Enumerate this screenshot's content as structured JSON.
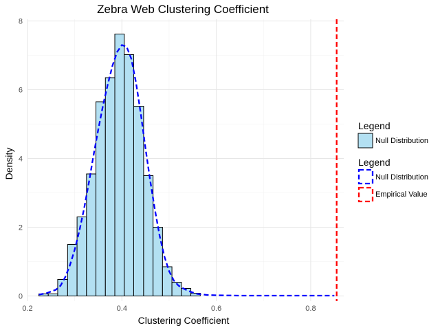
{
  "chart_data": {
    "type": "bar",
    "title": "Zebra Web Clustering Coefficient",
    "xlabel": "Clustering Coefficient",
    "ylabel": "Density",
    "xlim": [
      0.2,
      0.87
    ],
    "ylim": [
      -0.15,
      8.05
    ],
    "x_ticks": [
      0.2,
      0.4,
      0.6,
      0.8
    ],
    "y_ticks": [
      0,
      2,
      4,
      6,
      8
    ],
    "x_tick_labels": [
      "0.2",
      "0.4",
      "0.6",
      "0.8"
    ],
    "y_tick_labels": [
      "0",
      "2",
      "4",
      "6",
      "8"
    ],
    "grid": true,
    "legend_position": "right",
    "histogram": {
      "name": "Null Distribution",
      "fill": "#b3e0f2",
      "stroke": "#000000",
      "bins": [
        {
          "x0": 0.224,
          "x1": 0.244,
          "density": 0.06
        },
        {
          "x0": 0.244,
          "x1": 0.264,
          "density": 0.06
        },
        {
          "x0": 0.264,
          "x1": 0.285,
          "density": 0.48
        },
        {
          "x0": 0.285,
          "x1": 0.305,
          "density": 1.5
        },
        {
          "x0": 0.305,
          "x1": 0.325,
          "density": 2.3
        },
        {
          "x0": 0.325,
          "x1": 0.345,
          "density": 3.55
        },
        {
          "x0": 0.345,
          "x1": 0.365,
          "density": 5.65
        },
        {
          "x0": 0.365,
          "x1": 0.385,
          "density": 6.35
        },
        {
          "x0": 0.385,
          "x1": 0.405,
          "density": 7.62
        },
        {
          "x0": 0.405,
          "x1": 0.425,
          "density": 7.02
        },
        {
          "x0": 0.425,
          "x1": 0.446,
          "density": 5.52
        },
        {
          "x0": 0.446,
          "x1": 0.466,
          "density": 3.5
        },
        {
          "x0": 0.466,
          "x1": 0.486,
          "density": 2.0
        },
        {
          "x0": 0.486,
          "x1": 0.506,
          "density": 0.85
        },
        {
          "x0": 0.506,
          "x1": 0.526,
          "density": 0.4
        },
        {
          "x0": 0.526,
          "x1": 0.546,
          "density": 0.22
        },
        {
          "x0": 0.546,
          "x1": 0.566,
          "density": 0.08
        }
      ]
    },
    "density_curve": {
      "name": "Null Distribution",
      "color": "#0000ff",
      "dash": "dashed",
      "x": [
        0.224,
        0.24,
        0.26,
        0.27,
        0.28,
        0.29,
        0.3,
        0.31,
        0.32,
        0.33,
        0.34,
        0.35,
        0.36,
        0.37,
        0.38,
        0.39,
        0.4,
        0.41,
        0.42,
        0.43,
        0.44,
        0.45,
        0.46,
        0.47,
        0.48,
        0.49,
        0.5,
        0.51,
        0.52,
        0.53,
        0.54,
        0.55,
        0.56,
        0.58,
        0.6,
        0.65,
        0.7,
        0.75,
        0.8,
        0.85
      ],
      "y": [
        0.04,
        0.08,
        0.18,
        0.3,
        0.55,
        0.9,
        1.35,
        1.9,
        2.55,
        3.3,
        4.1,
        4.85,
        5.55,
        6.15,
        6.7,
        7.1,
        7.3,
        7.25,
        6.9,
        6.2,
        5.3,
        4.3,
        3.35,
        2.5,
        1.75,
        1.15,
        0.72,
        0.45,
        0.3,
        0.22,
        0.15,
        0.1,
        0.06,
        0.03,
        0.02,
        0.01,
        0.01,
        0.01,
        0.01,
        0.01
      ]
    },
    "empirical_value": {
      "name": "Empirical Value",
      "x": 0.855,
      "color": "#ff0000",
      "dash": "dashed"
    },
    "legends": [
      {
        "title": "Legend",
        "entries": [
          {
            "label": "Null Distribution",
            "kind": "fill"
          }
        ]
      },
      {
        "title": "Legend",
        "entries": [
          {
            "label": "Null Distribution",
            "kind": "blue-dash"
          },
          {
            "label": "Empirical Value",
            "kind": "red-dash"
          }
        ]
      }
    ]
  }
}
